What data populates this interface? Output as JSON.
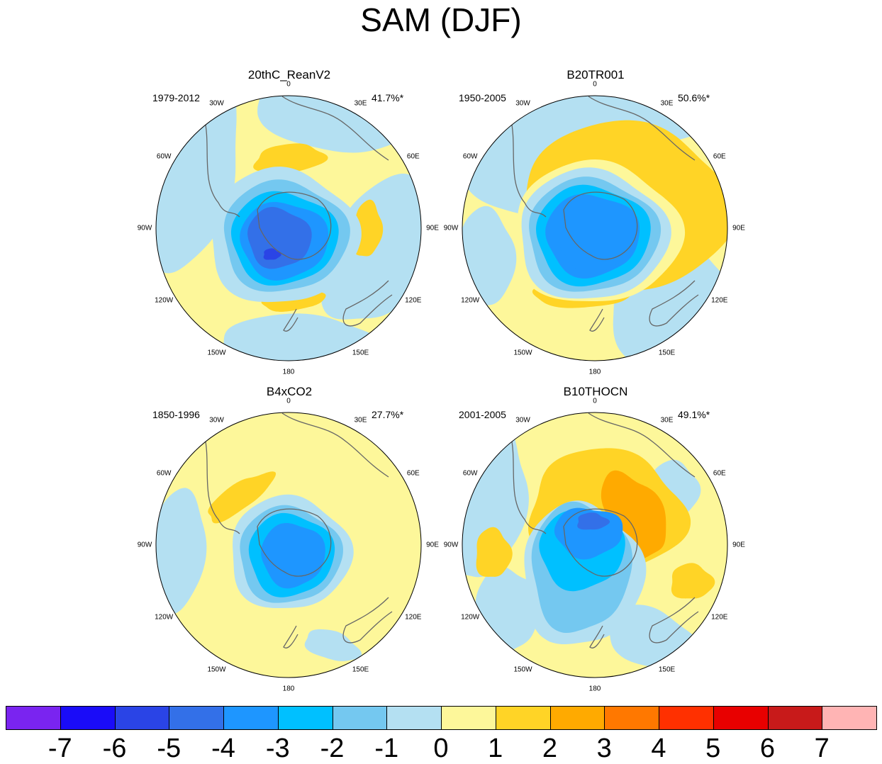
{
  "title": "SAM (DJF)",
  "colors": {
    "n7": "#7a24f0",
    "n6": "#1a0cf8",
    "n5": "#2a44e6",
    "n4": "#3370e8",
    "n3": "#1e96ff",
    "n2": "#00c0ff",
    "n1": "#74c8f0",
    "n0": "#b4e0f2",
    "p0": "#fdf79a",
    "p1": "#ffd426",
    "p2": "#ffaa00",
    "p3": "#ff7800",
    "p4": "#ff3000",
    "p5": "#e80000",
    "p6": "#c81a1a",
    "p7": "#ffb4b4",
    "coast": "#666666"
  },
  "longitude_labels": [
    "0",
    "30E",
    "60E",
    "90E",
    "120E",
    "150E",
    "180",
    "150W",
    "120W",
    "90W",
    "60W",
    "30W"
  ],
  "chart_data": [
    {
      "type": "polar-contour",
      "title": "20thC_ReanV2",
      "period": "1979-2012",
      "variance_explained": "41.7%*",
      "features": [
        {
          "description": "strong negative center over Antarctica",
          "min_value": -5,
          "lon": 0
        },
        {
          "description": "positive zonal ring in midlatitudes",
          "values": [
            1
          ],
          "centers_lon": [
            30,
            90,
            180
          ]
        }
      ]
    },
    {
      "type": "polar-contour",
      "title": "B20TR001",
      "period": "1950-2005",
      "variance_explained": "50.6%*",
      "features": [
        {
          "description": "negative center over Antarctica",
          "min_value": -4
        },
        {
          "description": "positive ring with maxima in Indian Ocean and SW Pacific",
          "values": [
            1
          ]
        }
      ]
    },
    {
      "type": "polar-contour",
      "title": "B4xCO2",
      "period": "1850-1996",
      "variance_explained": "27.7%*",
      "features": [
        {
          "description": "negative center over Antarctica",
          "min_value": -3
        },
        {
          "description": "weak positive anomaly near South America",
          "values": [
            1
          ]
        }
      ]
    },
    {
      "type": "polar-contour",
      "title": "B10THOCN",
      "period": "2001-2005",
      "variance_explained": "49.1%*",
      "features": [
        {
          "description": "negative center over Antarctica with lobe toward Ross Sea",
          "min_value": -4
        },
        {
          "description": "positive maximum in Indian Ocean sector",
          "max_value": 2,
          "lon": 60
        }
      ]
    }
  ],
  "colorbar": {
    "labels": [
      "-7",
      "-6",
      "-5",
      "-4",
      "-3",
      "-2",
      "-1",
      "0",
      "1",
      "2",
      "3",
      "4",
      "5",
      "6",
      "7"
    ],
    "color_keys": [
      "n7",
      "n6",
      "n5",
      "n4",
      "n3",
      "n2",
      "n1",
      "n0",
      "p0",
      "p1",
      "p2",
      "p3",
      "p4",
      "p5",
      "p6",
      "p7"
    ]
  }
}
